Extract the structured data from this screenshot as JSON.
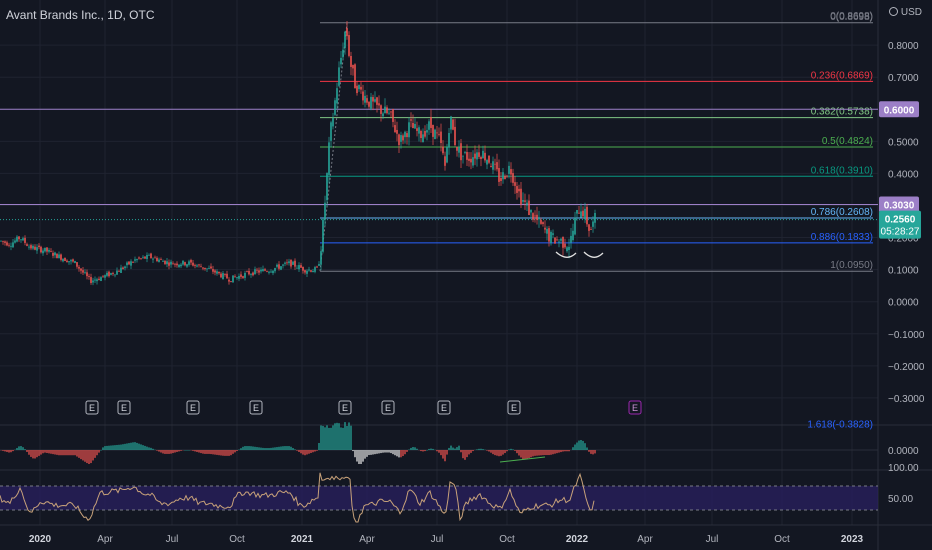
{
  "header": {
    "symbol_title": "Avant Brands Inc., 1D, OTC",
    "currency": "USD",
    "zero_label": "0(0.8698)"
  },
  "chart_data": {
    "type": "candlestick",
    "title": "Avant Brands Inc., 1D, OTC",
    "price_axis": {
      "ticks": [
        {
          "v": 0.8,
          "label": "0.8000"
        },
        {
          "v": 0.7,
          "label": "0.7000"
        },
        {
          "v": 0.6,
          "label": "0.6000"
        },
        {
          "v": 0.5,
          "label": "0.5000"
        },
        {
          "v": 0.4,
          "label": "0.4000"
        },
        {
          "v": 0.3,
          "label": "0.3000"
        },
        {
          "v": 0.2,
          "label": "0.2000"
        },
        {
          "v": 0.1,
          "label": "0.1000"
        },
        {
          "v": 0.0,
          "label": "0.0000"
        },
        {
          "v": -0.1,
          "label": "−0.1000"
        },
        {
          "v": -0.2,
          "label": "−0.2000"
        },
        {
          "v": -0.3,
          "label": "−0.3000"
        }
      ],
      "ylim": [
        -0.33,
        0.88
      ]
    },
    "time_axis": [
      "2020",
      "Apr",
      "Jul",
      "Oct",
      "2021",
      "Apr",
      "Jul",
      "Oct",
      "2022",
      "Apr",
      "Jul",
      "Oct",
      "2023"
    ],
    "fib_levels": [
      {
        "level": "0",
        "price": 0.8698,
        "label": "0(0.8698)",
        "color": "#787b86"
      },
      {
        "level": "0.236",
        "price": 0.6869,
        "label": "0.236(0.6869)",
        "color": "#f23645"
      },
      {
        "level": "0.382",
        "price": 0.5738,
        "label": "0.382(0.5738)",
        "color": "#81c784"
      },
      {
        "level": "0.5",
        "price": 0.4824,
        "label": "0.5(0.4824)",
        "color": "#4caf50"
      },
      {
        "level": "0.618",
        "price": 0.391,
        "label": "0.618(0.3910)",
        "color": "#089981"
      },
      {
        "level": "0.786",
        "price": 0.2608,
        "label": "0.786(0.2608)",
        "color": "#64b5f6"
      },
      {
        "level": "0.886",
        "price": 0.1833,
        "label": "0.886(0.1833)",
        "color": "#2962ff"
      },
      {
        "level": "1",
        "price": 0.095,
        "label": "1(0.0950)",
        "color": "#787b86"
      },
      {
        "level": "1.618",
        "price": -0.3828,
        "label": "1.618(-0.3828)",
        "color": "#2962ff"
      }
    ],
    "horizontal_lines": [
      {
        "price": 0.6,
        "label": "0.6000",
        "color": "#9c7fc7"
      },
      {
        "price": 0.303,
        "label": "0.3030",
        "color": "#9c7fc7"
      }
    ],
    "last_price": {
      "price": 0.256,
      "label": "0.2560",
      "countdown": "05:28:27",
      "color": "#26a69a"
    },
    "price_path": [
      [
        0,
        0.19
      ],
      [
        10,
        0.18
      ],
      [
        20,
        0.2
      ],
      [
        30,
        0.17
      ],
      [
        45,
        0.16
      ],
      [
        60,
        0.14
      ],
      [
        75,
        0.12
      ],
      [
        90,
        0.065
      ],
      [
        105,
        0.08
      ],
      [
        120,
        0.1
      ],
      [
        135,
        0.13
      ],
      [
        150,
        0.14
      ],
      [
        170,
        0.12
      ],
      [
        190,
        0.12
      ],
      [
        210,
        0.1
      ],
      [
        230,
        0.07
      ],
      [
        250,
        0.09
      ],
      [
        270,
        0.1
      ],
      [
        290,
        0.12
      ],
      [
        305,
        0.1
      ],
      [
        318,
        0.1
      ],
      [
        322,
        0.2
      ],
      [
        326,
        0.35
      ],
      [
        330,
        0.52
      ],
      [
        334,
        0.6
      ],
      [
        338,
        0.7
      ],
      [
        342,
        0.78
      ],
      [
        346,
        0.86
      ],
      [
        350,
        0.75
      ],
      [
        355,
        0.68
      ],
      [
        360,
        0.66
      ],
      [
        365,
        0.64
      ],
      [
        370,
        0.62
      ],
      [
        380,
        0.6
      ],
      [
        390,
        0.58
      ],
      [
        400,
        0.5
      ],
      [
        410,
        0.55
      ],
      [
        420,
        0.52
      ],
      [
        430,
        0.55
      ],
      [
        440,
        0.5
      ],
      [
        445,
        0.42
      ],
      [
        450,
        0.58
      ],
      [
        455,
        0.5
      ],
      [
        460,
        0.46
      ],
      [
        470,
        0.45
      ],
      [
        480,
        0.47
      ],
      [
        490,
        0.44
      ],
      [
        500,
        0.38
      ],
      [
        510,
        0.42
      ],
      [
        520,
        0.33
      ],
      [
        530,
        0.28
      ],
      [
        540,
        0.24
      ],
      [
        550,
        0.2
      ],
      [
        560,
        0.19
      ],
      [
        570,
        0.18
      ],
      [
        575,
        0.25
      ],
      [
        580,
        0.3
      ],
      [
        585,
        0.27
      ],
      [
        590,
        0.22
      ],
      [
        595,
        0.256
      ]
    ],
    "earnings_markers": [
      {
        "label": "E",
        "future": false
      },
      {
        "label": "E",
        "future": false
      },
      {
        "label": "E",
        "future": false
      },
      {
        "label": "E",
        "future": false
      },
      {
        "label": "E",
        "future": false
      },
      {
        "label": "E",
        "future": false
      },
      {
        "label": "E",
        "future": false
      },
      {
        "label": "E",
        "future": false
      },
      {
        "label": "E",
        "future": true
      }
    ],
    "oscillator": {
      "zero_label": "0.0000"
    },
    "rsi": {
      "upper_label": "100.00",
      "mid_label": "50.00"
    }
  },
  "colors": {
    "background": "#131722",
    "up": "#26a69a",
    "down": "#ef5350",
    "grid": "#1f2330",
    "axis_text": "#b2b5be",
    "rsi_band": "#2a2060",
    "rsi_line": "#c8a27a"
  }
}
